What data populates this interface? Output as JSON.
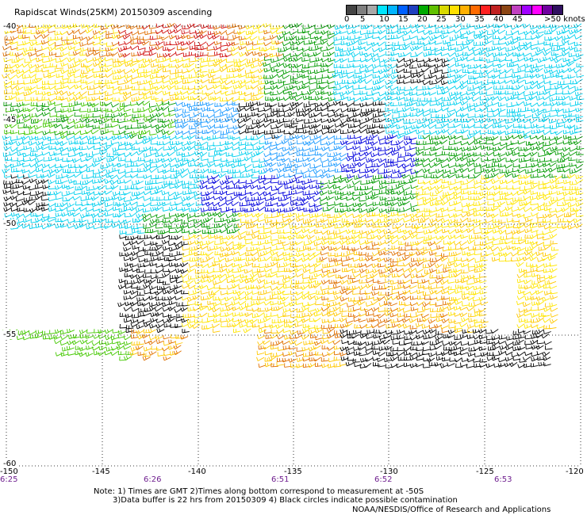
{
  "title": "Rapidscat Winds(25KM) 20150309 ascending",
  "legend": {
    "unit_label": ">50 knots",
    "labels": [
      "0",
      "5",
      "10",
      "15",
      "20",
      "25",
      "30",
      "35",
      "40",
      "45"
    ],
    "colors": [
      "#444444",
      "#7f7f7f",
      "#a8a8a8",
      "#00e5ff",
      "#00b4ff",
      "#0060ff",
      "#1f3fbf",
      "#00aa00",
      "#60c000",
      "#d9d900",
      "#ffe000",
      "#ffb000",
      "#ff6a00",
      "#ff2020",
      "#c02020",
      "#8b4513",
      "#c040c0",
      "#a000ff",
      "#ff00ff",
      "#7000a0",
      "#301060"
    ]
  },
  "axes": {
    "lat_labels": [
      "-40",
      "-45",
      "-50",
      "-55",
      "-60"
    ],
    "lon_labels": [
      "-150",
      "-145",
      "-140",
      "-135",
      "-130",
      "-125",
      "-120"
    ],
    "time_labels": [
      "6:25",
      "6:26",
      "6:51",
      "6:52",
      "6:53"
    ]
  },
  "notes": [
    "Note: 1) Times are GMT 2)Times along bottom correspond to measurement at -50S",
    "3)Data buffer is 22 hrs from 20150309 4) Black circles indicate possible contamination"
  ],
  "credit": "NOAA/NESDIS/Office of Research and Applications"
}
